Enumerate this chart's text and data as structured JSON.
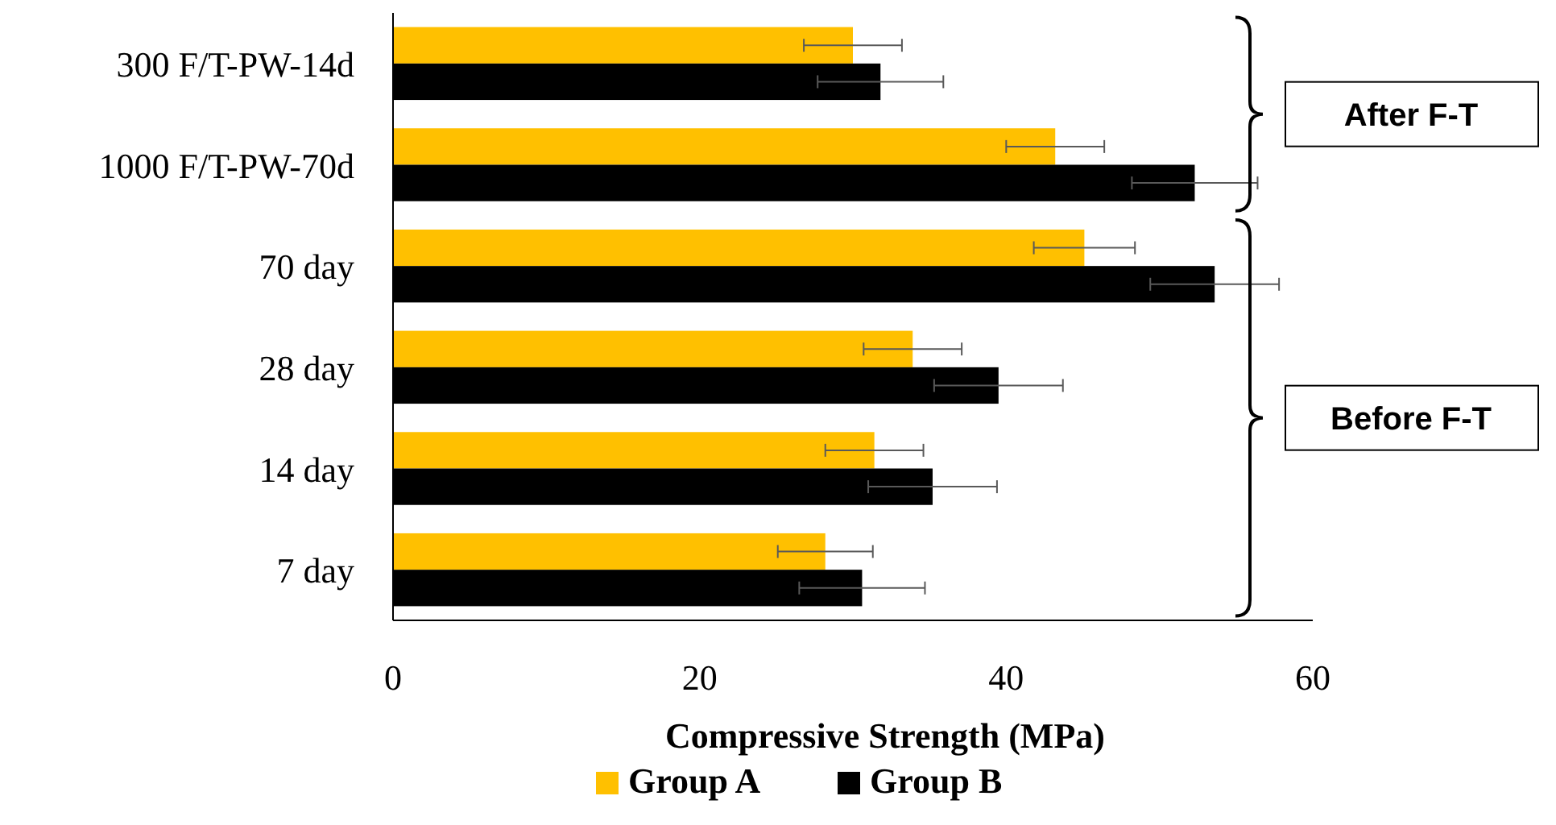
{
  "chart_data": {
    "type": "bar",
    "orientation": "horizontal",
    "xlabel": "Compressive Strength (MPa)",
    "categories": [
      "300 F/T-PW-14d",
      "1000 F/T-PW-70d",
      "70 day",
      "28 day",
      "14 day",
      "7 day"
    ],
    "series": [
      {
        "name": "Group A",
        "color": "#ffc000",
        "values": [
          30.0,
          43.2,
          45.1,
          33.9,
          31.4,
          28.2
        ],
        "errors": [
          3.2,
          3.2,
          3.3,
          3.2,
          3.2,
          3.1
        ]
      },
      {
        "name": "Group B",
        "color": "#000000",
        "values": [
          31.8,
          52.3,
          53.6,
          39.5,
          35.2,
          30.6
        ],
        "errors": [
          4.1,
          4.1,
          4.2,
          4.2,
          4.2,
          4.1
        ]
      }
    ],
    "xlim": [
      0,
      60
    ],
    "xticks": [
      0,
      20,
      40,
      60
    ],
    "grid": false,
    "legend": "bottom",
    "annotations": [
      "After F-T",
      "Before F-T"
    ]
  }
}
